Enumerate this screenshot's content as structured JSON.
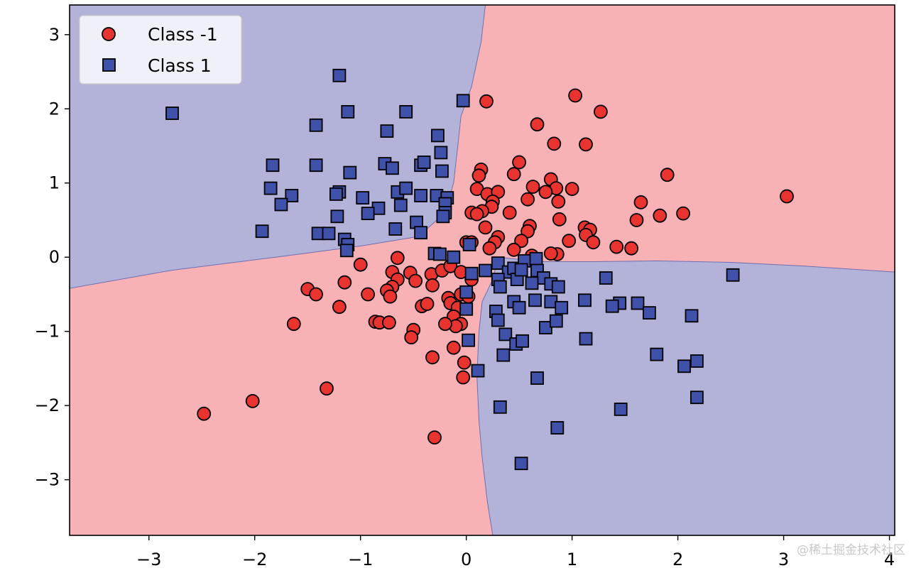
{
  "chart_data": {
    "type": "scatter",
    "title": "",
    "xlabel": "",
    "ylabel": "",
    "xlim": [
      -3.75,
      4.05
    ],
    "ylim": [
      -3.75,
      3.4
    ],
    "xticks": [
      -3,
      -2,
      -1,
      0,
      1,
      2,
      3,
      4
    ],
    "yticks": [
      -3,
      -2,
      -1,
      0,
      1,
      2,
      3
    ],
    "xtick_labels": [
      "−3",
      "−2",
      "−1",
      "0",
      "1",
      "2",
      "3",
      "4"
    ],
    "ytick_labels": [
      "−3",
      "−2",
      "−1",
      "0",
      "1",
      "2",
      "3"
    ],
    "grid": false,
    "legend_position": "upper-left",
    "colors": {
      "region_neg": "#f8b2b5",
      "region_pos": "#b3b2d9",
      "class_neg_marker": "#e8332f",
      "class_pos_marker": "#3f51a8",
      "marker_edge": "#000000"
    },
    "decision_regions": [
      {
        "class": 1,
        "label": "Class 1 region",
        "polygon": [
          [
            -3.75,
            3.4
          ],
          [
            0.18,
            3.4
          ],
          [
            0.14,
            2.9
          ],
          [
            0.05,
            2.3
          ],
          [
            -0.05,
            1.9
          ],
          [
            -0.08,
            1.5
          ],
          [
            -0.12,
            1.0
          ],
          [
            -0.2,
            0.6
          ],
          [
            -0.45,
            0.28
          ],
          [
            -1.0,
            0.15
          ],
          [
            -1.8,
            0.0
          ],
          [
            -2.8,
            -0.18
          ],
          [
            -3.75,
            -0.42
          ]
        ]
      },
      {
        "class": 1,
        "label": "Class 1 region",
        "polygon": [
          [
            0.25,
            -0.3
          ],
          [
            0.3,
            0.0
          ],
          [
            0.7,
            -0.06
          ],
          [
            1.2,
            -0.06
          ],
          [
            1.8,
            -0.05
          ],
          [
            2.5,
            -0.07
          ],
          [
            3.2,
            -0.12
          ],
          [
            4.05,
            -0.2
          ],
          [
            4.05,
            -3.75
          ],
          [
            0.25,
            -3.75
          ],
          [
            0.2,
            -3.3
          ],
          [
            0.15,
            -2.7
          ],
          [
            0.12,
            -2.2
          ],
          [
            0.1,
            -1.6
          ],
          [
            0.12,
            -1.0
          ],
          [
            0.15,
            -0.6
          ]
        ]
      }
    ],
    "series": [
      {
        "name": "Class -1",
        "marker": "circle",
        "points": [
          [
            3.03,
            0.82
          ],
          [
            1.03,
            2.18
          ],
          [
            1.27,
            1.96
          ],
          [
            0.19,
            2.1
          ],
          [
            0.67,
            1.79
          ],
          [
            0.83,
            1.53
          ],
          [
            1.13,
            1.52
          ],
          [
            1.9,
            1.11
          ],
          [
            0.5,
            1.28
          ],
          [
            0.14,
            1.18
          ],
          [
            0.12,
            1.1
          ],
          [
            0.45,
            1.12
          ],
          [
            0.8,
            1.05
          ],
          [
            0.63,
            0.95
          ],
          [
            0.85,
            0.93
          ],
          [
            1.0,
            0.92
          ],
          [
            0.1,
            0.92
          ],
          [
            0.2,
            0.85
          ],
          [
            0.3,
            0.88
          ],
          [
            0.58,
            0.78
          ],
          [
            0.75,
            0.88
          ],
          [
            0.25,
            0.75
          ],
          [
            0.87,
            0.75
          ],
          [
            1.65,
            0.74
          ],
          [
            0.24,
            0.68
          ],
          [
            0.15,
            0.62
          ],
          [
            0.05,
            0.6
          ],
          [
            0.1,
            0.58
          ],
          [
            0.41,
            0.6
          ],
          [
            2.05,
            0.59
          ],
          [
            1.83,
            0.56
          ],
          [
            1.61,
            0.5
          ],
          [
            0.88,
            0.51
          ],
          [
            1.12,
            0.4
          ],
          [
            1.17,
            0.37
          ],
          [
            0.6,
            0.42
          ],
          [
            0.58,
            0.35
          ],
          [
            1.13,
            0.3
          ],
          [
            0.3,
            0.27
          ],
          [
            0.27,
            0.2
          ],
          [
            0.18,
            0.4
          ],
          [
            0.22,
            0.12
          ],
          [
            0.52,
            0.22
          ],
          [
            0.45,
            0.1
          ],
          [
            0.97,
            0.22
          ],
          [
            1.2,
            0.2
          ],
          [
            1.42,
            0.14
          ],
          [
            1.56,
            0.12
          ],
          [
            0.86,
            0.04
          ],
          [
            0.8,
            0.05
          ],
          [
            0.62,
            0.02
          ],
          [
            0.0,
            0.2
          ],
          [
            0.05,
            0.2
          ],
          [
            -0.65,
            -0.01
          ],
          [
            -1.0,
            -0.1
          ],
          [
            -0.7,
            -0.2
          ],
          [
            -0.53,
            -0.21
          ],
          [
            -0.33,
            -0.23
          ],
          [
            -0.23,
            -0.18
          ],
          [
            -0.15,
            -0.12
          ],
          [
            -0.05,
            -0.2
          ],
          [
            0.05,
            -0.3
          ],
          [
            -1.15,
            -0.34
          ],
          [
            -0.65,
            -0.3
          ],
          [
            -0.48,
            -0.32
          ],
          [
            -0.32,
            -0.38
          ],
          [
            -0.7,
            -0.4
          ],
          [
            -0.75,
            -0.45
          ],
          [
            -1.5,
            -0.43
          ],
          [
            -1.42,
            -0.5
          ],
          [
            -0.93,
            -0.5
          ],
          [
            -0.72,
            -0.53
          ],
          [
            -0.17,
            -0.55
          ],
          [
            -0.05,
            -0.5
          ],
          [
            0.02,
            -0.53
          ],
          [
            -1.2,
            -0.67
          ],
          [
            -0.42,
            -0.66
          ],
          [
            -0.37,
            -0.63
          ],
          [
            -0.15,
            -0.62
          ],
          [
            -0.08,
            -0.68
          ],
          [
            -0.12,
            -0.8
          ],
          [
            -0.05,
            -0.9
          ],
          [
            -1.63,
            -0.9
          ],
          [
            -0.86,
            -0.87
          ],
          [
            -0.82,
            -0.88
          ],
          [
            -0.73,
            -0.88
          ],
          [
            -0.1,
            -0.93
          ],
          [
            -0.2,
            -0.9
          ],
          [
            -0.5,
            -0.98
          ],
          [
            -0.52,
            -1.08
          ],
          [
            -0.12,
            -1.22
          ],
          [
            -0.32,
            -1.35
          ],
          [
            -0.02,
            -1.42
          ],
          [
            -0.03,
            -1.62
          ],
          [
            -1.32,
            -1.77
          ],
          [
            -2.02,
            -1.94
          ],
          [
            -2.48,
            -2.11
          ],
          [
            -0.3,
            -2.43
          ]
        ]
      },
      {
        "name": "Class 1",
        "marker": "square",
        "points": [
          [
            -1.2,
            2.45
          ],
          [
            -0.03,
            2.11
          ],
          [
            -2.78,
            1.94
          ],
          [
            -1.12,
            1.96
          ],
          [
            -0.57,
            1.96
          ],
          [
            -1.42,
            1.78
          ],
          [
            -0.75,
            1.7
          ],
          [
            -0.27,
            1.64
          ],
          [
            -1.83,
            1.24
          ],
          [
            -1.42,
            1.24
          ],
          [
            -0.77,
            1.26
          ],
          [
            -0.7,
            1.2
          ],
          [
            -0.43,
            1.24
          ],
          [
            -0.4,
            1.28
          ],
          [
            -0.24,
            1.41
          ],
          [
            -0.23,
            1.16
          ],
          [
            -1.1,
            1.14
          ],
          [
            -1.85,
            0.93
          ],
          [
            -1.65,
            0.83
          ],
          [
            -1.75,
            0.71
          ],
          [
            -1.2,
            0.88
          ],
          [
            -1.23,
            0.85
          ],
          [
            -0.98,
            0.8
          ],
          [
            -0.65,
            0.88
          ],
          [
            -0.57,
            0.93
          ],
          [
            -0.43,
            0.83
          ],
          [
            -0.28,
            0.83
          ],
          [
            -0.18,
            0.8
          ],
          [
            -0.2,
            0.72
          ],
          [
            -0.62,
            0.7
          ],
          [
            -0.83,
            0.66
          ],
          [
            -0.93,
            0.59
          ],
          [
            -1.22,
            0.55
          ],
          [
            -0.2,
            0.6
          ],
          [
            -0.22,
            0.55
          ],
          [
            -0.47,
            0.47
          ],
          [
            -1.93,
            0.35
          ],
          [
            -1.4,
            0.32
          ],
          [
            -1.3,
            0.32
          ],
          [
            -0.67,
            0.38
          ],
          [
            -0.43,
            0.33
          ],
          [
            -1.15,
            0.24
          ],
          [
            -1.12,
            0.17
          ],
          [
            -1.13,
            0.09
          ],
          [
            -0.3,
            0.05
          ],
          [
            -0.25,
            0.04
          ],
          [
            -0.12,
            0.0
          ],
          [
            0.03,
            0.17
          ],
          [
            0.05,
            -0.22
          ],
          [
            0.18,
            -0.18
          ],
          [
            0.3,
            -0.08
          ],
          [
            0.4,
            -0.2
          ],
          [
            0.45,
            -0.15
          ],
          [
            0.55,
            -0.05
          ],
          [
            0.66,
            -0.02
          ],
          [
            0.67,
            -0.18
          ],
          [
            0.73,
            -0.28
          ],
          [
            0.48,
            -0.3
          ],
          [
            0.3,
            -0.3
          ],
          [
            0.32,
            -0.4
          ],
          [
            0.52,
            -0.17
          ],
          [
            0.62,
            -0.35
          ],
          [
            0.8,
            -0.36
          ],
          [
            0.87,
            -0.4
          ],
          [
            1.32,
            -0.28
          ],
          [
            2.52,
            -0.24
          ],
          [
            0.0,
            -0.47
          ],
          [
            0.45,
            -0.6
          ],
          [
            0.5,
            -0.68
          ],
          [
            0.65,
            -0.58
          ],
          [
            0.8,
            -0.6
          ],
          [
            0.9,
            -0.68
          ],
          [
            1.12,
            -0.58
          ],
          [
            1.45,
            -0.62
          ],
          [
            1.38,
            -0.66
          ],
          [
            1.62,
            -0.62
          ],
          [
            1.73,
            -0.75
          ],
          [
            2.13,
            -0.79
          ],
          [
            0.28,
            -0.73
          ],
          [
            0.3,
            -0.85
          ],
          [
            0.0,
            -0.7
          ],
          [
            0.75,
            -0.95
          ],
          [
            0.85,
            -0.86
          ],
          [
            0.37,
            -1.04
          ],
          [
            0.47,
            -1.17
          ],
          [
            0.53,
            -1.13
          ],
          [
            1.13,
            -1.1
          ],
          [
            0.02,
            -1.12
          ],
          [
            0.35,
            -1.32
          ],
          [
            1.8,
            -1.31
          ],
          [
            2.06,
            -1.47
          ],
          [
            2.18,
            -1.4
          ],
          [
            0.11,
            -1.53
          ],
          [
            0.67,
            -1.63
          ],
          [
            2.18,
            -1.89
          ],
          [
            0.32,
            -2.02
          ],
          [
            1.46,
            -2.05
          ],
          [
            0.86,
            -2.3
          ],
          [
            0.52,
            -2.78
          ]
        ]
      }
    ],
    "legend": [
      {
        "label": "Class -1",
        "marker": "circle"
      },
      {
        "label": "Class 1",
        "marker": "square"
      }
    ]
  },
  "watermark": "@稀土掘金技术社区"
}
